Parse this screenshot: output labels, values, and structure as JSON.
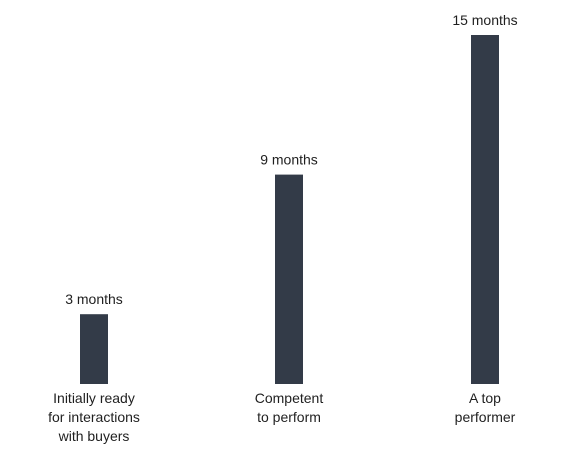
{
  "chart_data": {
    "type": "bar",
    "categories": [
      [
        "Initially ready",
        "for interactions",
        "with buyers"
      ],
      [
        "Competent",
        "to perform"
      ],
      [
        "A top",
        "performer"
      ]
    ],
    "values": [
      3,
      9,
      15
    ],
    "data_labels": [
      "3 months",
      "9 months",
      "15 months"
    ],
    "title": "",
    "xlabel": "",
    "ylabel": "",
    "ylim": [
      0,
      15
    ],
    "grid": false,
    "legend": "none",
    "bar_color": "#333b48",
    "text_color": "#1f1f1f"
  }
}
